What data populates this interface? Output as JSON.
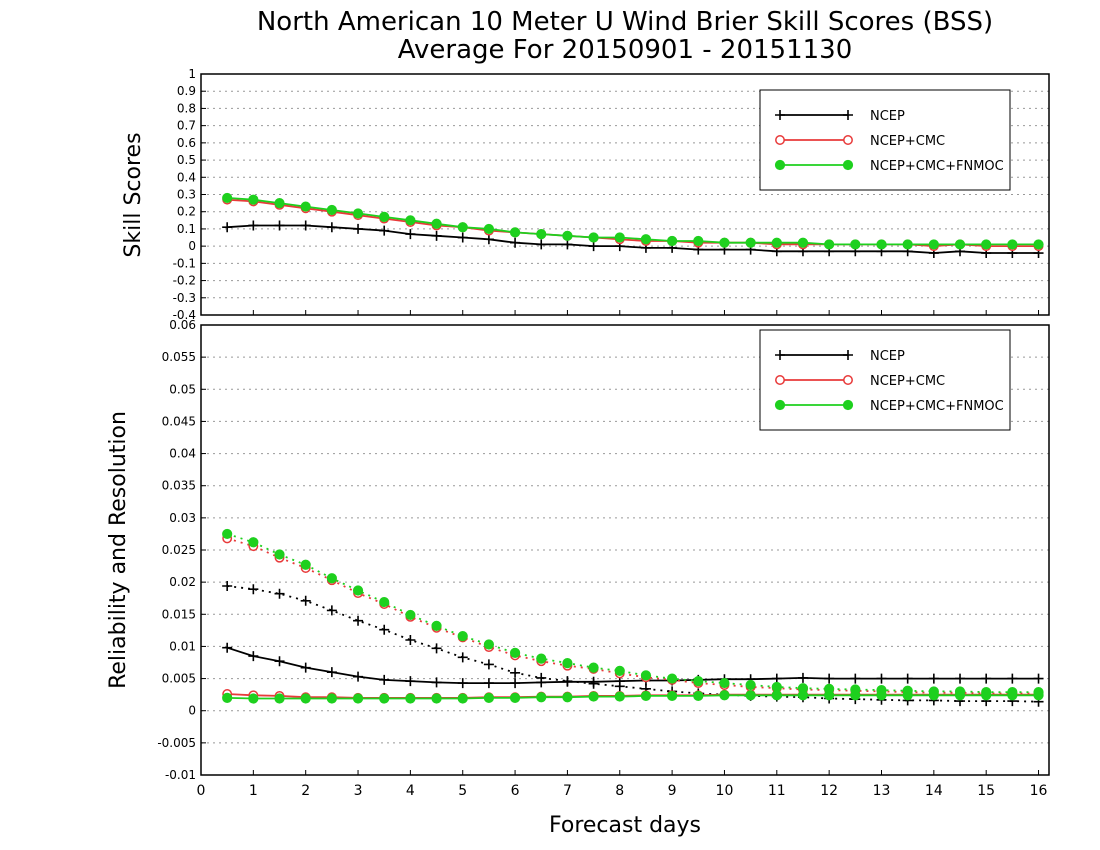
{
  "title": {
    "line1": "North American 10 Meter U Wind Brier Skill Scores (BSS)",
    "line2": "Average For 20150901 - 20151130"
  },
  "colors": {
    "NCEP": "#000000",
    "NCEP+CMC": "#e83a3a",
    "NCEP+CMC+FNMOC": "#1ed01e"
  },
  "chart_data": [
    {
      "type": "line",
      "ylabel": "Skill Scores",
      "xlim": [
        0,
        16.2
      ],
      "ylim": [
        -0.4,
        1
      ],
      "grid": true,
      "legend_position": "top-right",
      "x_ticks": [
        "0",
        "1",
        "2",
        "3",
        "4",
        "5",
        "6",
        "7",
        "8",
        "9",
        "10",
        "11",
        "12",
        "13",
        "14",
        "15",
        "16"
      ],
      "y_ticks": [
        "-0.4",
        "-0.3",
        "-0.2",
        "-0.1",
        "0",
        "0.1",
        "0.2",
        "0.3",
        "0.4",
        "0.5",
        "0.6",
        "0.7",
        "0.8",
        "0.9",
        "1"
      ],
      "x": [
        0.5,
        1,
        1.5,
        2,
        2.5,
        3,
        3.5,
        4,
        4.5,
        5,
        5.5,
        6,
        6.5,
        7,
        7.5,
        8,
        8.5,
        9,
        9.5,
        10,
        10.5,
        11,
        11.5,
        12,
        12.5,
        13,
        13.5,
        14,
        14.5,
        15,
        15.5,
        16
      ],
      "series": [
        {
          "name": "NCEP",
          "marker": "plus",
          "color": "#000000",
          "values": [
            0.11,
            0.12,
            0.12,
            0.12,
            0.11,
            0.1,
            0.09,
            0.07,
            0.06,
            0.05,
            0.04,
            0.02,
            0.01,
            0.01,
            0.0,
            0.0,
            -0.01,
            -0.01,
            -0.02,
            -0.02,
            -0.02,
            -0.03,
            -0.03,
            -0.03,
            -0.03,
            -0.03,
            -0.03,
            -0.04,
            -0.03,
            -0.04,
            -0.04,
            -0.04
          ]
        },
        {
          "name": "NCEP+CMC",
          "marker": "open-circle",
          "color": "#e83a3a",
          "values": [
            0.27,
            0.26,
            0.24,
            0.22,
            0.2,
            0.18,
            0.16,
            0.14,
            0.12,
            0.11,
            0.09,
            0.08,
            0.07,
            0.06,
            0.05,
            0.04,
            0.03,
            0.03,
            0.02,
            0.02,
            0.02,
            0.01,
            0.01,
            0.01,
            0.01,
            0.01,
            0.01,
            0.0,
            0.01,
            0.0,
            0.0,
            0.0
          ]
        },
        {
          "name": "NCEP+CMC+FNMOC",
          "marker": "filled-circle",
          "color": "#1ed01e",
          "values": [
            0.28,
            0.27,
            0.25,
            0.23,
            0.21,
            0.19,
            0.17,
            0.15,
            0.13,
            0.11,
            0.1,
            0.08,
            0.07,
            0.06,
            0.05,
            0.05,
            0.04,
            0.03,
            0.03,
            0.02,
            0.02,
            0.02,
            0.02,
            0.01,
            0.01,
            0.01,
            0.01,
            0.01,
            0.01,
            0.01,
            0.01,
            0.01
          ]
        }
      ]
    },
    {
      "type": "line",
      "ylabel": "Reliability and Resolution",
      "xlabel": "Forecast days",
      "xlim": [
        0,
        16.2
      ],
      "ylim": [
        -0.01,
        0.06
      ],
      "grid": true,
      "legend_position": "top-right",
      "x_ticks": [
        "0",
        "1",
        "2",
        "3",
        "4",
        "5",
        "6",
        "7",
        "8",
        "9",
        "10",
        "11",
        "12",
        "13",
        "14",
        "15",
        "16"
      ],
      "y_ticks": [
        "-0.01",
        "-0.005",
        "0",
        "0.005",
        "0.01",
        "0.015",
        "0.02",
        "0.025",
        "0.03",
        "0.035",
        "0.04",
        "0.045",
        "0.05",
        "0.055",
        "0.06"
      ],
      "x": [
        0.5,
        1,
        1.5,
        2,
        2.5,
        3,
        3.5,
        4,
        4.5,
        5,
        5.5,
        6,
        6.5,
        7,
        7.5,
        8,
        8.5,
        9,
        9.5,
        10,
        10.5,
        11,
        11.5,
        12,
        12.5,
        13,
        13.5,
        14,
        14.5,
        15,
        15.5,
        16
      ],
      "series": [
        {
          "name": "NCEP",
          "metric": "reliability",
          "line": "solid",
          "marker": "plus",
          "color": "#000000",
          "values": [
            0.0098,
            0.0085,
            0.0077,
            0.0067,
            0.006,
            0.0053,
            0.0048,
            0.0046,
            0.0044,
            0.0043,
            0.0043,
            0.0043,
            0.0044,
            0.0045,
            0.0045,
            0.0046,
            0.0047,
            0.0047,
            0.0048,
            0.0049,
            0.0049,
            0.005,
            0.0051,
            0.005,
            0.005,
            0.005,
            0.005,
            0.005,
            0.005,
            0.005,
            0.005,
            0.005
          ]
        },
        {
          "name": "NCEP",
          "metric": "resolution",
          "line": "dotted",
          "marker": "plus",
          "color": "#000000",
          "values": [
            0.0194,
            0.0189,
            0.0182,
            0.0171,
            0.0156,
            0.014,
            0.0126,
            0.011,
            0.0097,
            0.0083,
            0.0072,
            0.0059,
            0.0051,
            0.0046,
            0.0042,
            0.0038,
            0.0034,
            0.003,
            0.0027,
            0.0025,
            0.0023,
            0.0022,
            0.0021,
            0.0019,
            0.0018,
            0.0017,
            0.0016,
            0.0016,
            0.0015,
            0.0015,
            0.0015,
            0.0014
          ]
        },
        {
          "name": "NCEP+CMC",
          "metric": "reliability",
          "line": "solid",
          "marker": "open-circle",
          "color": "#e83a3a",
          "values": [
            0.0026,
            0.0024,
            0.0023,
            0.0021,
            0.0021,
            0.002,
            0.002,
            0.002,
            0.002,
            0.002,
            0.0021,
            0.0021,
            0.0022,
            0.0022,
            0.0023,
            0.0023,
            0.0024,
            0.0024,
            0.0024,
            0.0025,
            0.0025,
            0.0025,
            0.0025,
            0.0025,
            0.0025,
            0.0025,
            0.0025,
            0.0025,
            0.0025,
            0.0025,
            0.0025,
            0.0025
          ]
        },
        {
          "name": "NCEP+CMC",
          "metric": "resolution",
          "line": "dotted",
          "marker": "open-circle",
          "color": "#e83a3a",
          "values": [
            0.0268,
            0.0256,
            0.0238,
            0.0222,
            0.0203,
            0.0183,
            0.0166,
            0.0146,
            0.0129,
            0.0114,
            0.0099,
            0.0086,
            0.0077,
            0.007,
            0.0065,
            0.0058,
            0.0052,
            0.0048,
            0.0043,
            0.004,
            0.0037,
            0.0035,
            0.0033,
            0.0032,
            0.0031,
            0.003,
            0.0029,
            0.0028,
            0.0028,
            0.0027,
            0.0027,
            0.0027
          ]
        },
        {
          "name": "NCEP+CMC+FNMOC",
          "metric": "reliability",
          "line": "solid",
          "marker": "filled-circle",
          "color": "#1ed01e",
          "values": [
            0.002,
            0.0019,
            0.0019,
            0.0019,
            0.0019,
            0.0019,
            0.0019,
            0.0019,
            0.0019,
            0.0019,
            0.002,
            0.002,
            0.0021,
            0.0021,
            0.0022,
            0.0022,
            0.0023,
            0.0023,
            0.0023,
            0.0024,
            0.0024,
            0.0024,
            0.0024,
            0.0024,
            0.0024,
            0.0024,
            0.0024,
            0.0024,
            0.0024,
            0.0024,
            0.0024,
            0.0024
          ]
        },
        {
          "name": "NCEP+CMC+FNMOC",
          "metric": "resolution",
          "line": "dotted",
          "marker": "filled-circle",
          "color": "#1ed01e",
          "values": [
            0.0275,
            0.0262,
            0.0243,
            0.0227,
            0.0206,
            0.0187,
            0.0169,
            0.0149,
            0.0132,
            0.0116,
            0.0103,
            0.009,
            0.0081,
            0.0074,
            0.0067,
            0.0062,
            0.0055,
            0.005,
            0.0046,
            0.0043,
            0.004,
            0.0037,
            0.0035,
            0.0034,
            0.0033,
            0.0032,
            0.0031,
            0.003,
            0.003,
            0.0029,
            0.0029,
            0.0029
          ]
        }
      ]
    }
  ]
}
